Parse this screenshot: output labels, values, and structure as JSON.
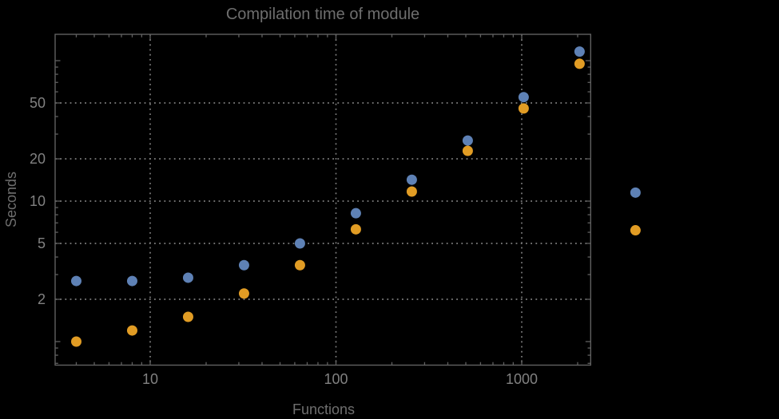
{
  "chart_data": {
    "type": "scatter",
    "title": "Compilation time of module",
    "xlabel": "Functions",
    "ylabel": "Seconds",
    "x_scale": "log",
    "y_scale": "log",
    "xlim": [
      3.1,
      2350
    ],
    "ylim": [
      0.68,
      154
    ],
    "grid": "dotted",
    "legend": "none",
    "x_ticks_labeled": [
      10,
      100,
      1000
    ],
    "y_ticks_labeled": [
      2,
      5,
      10,
      20,
      50
    ],
    "x": [
      4,
      8,
      16,
      32,
      64,
      128,
      256,
      512,
      1024,
      2048,
      4096
    ],
    "series": [
      {
        "name": "blue-series",
        "color": "#5e81b5",
        "values": [
          2.7,
          2.7,
          2.85,
          3.5,
          5.0,
          8.2,
          14.2,
          27,
          55,
          116,
          11.5
        ]
      },
      {
        "name": "orange-series",
        "color": "#e19c24",
        "values": [
          1.0,
          1.2,
          1.5,
          2.2,
          3.5,
          6.3,
          11.7,
          22.8,
          45.7,
          95,
          6.2
        ]
      }
    ]
  },
  "colors": {
    "background": "#000000",
    "frame": "#606060",
    "grid": "#7e7e7e",
    "title": "#6e6e6e",
    "axis_label": "#6f6f6f",
    "tick_label": "#818181"
  }
}
